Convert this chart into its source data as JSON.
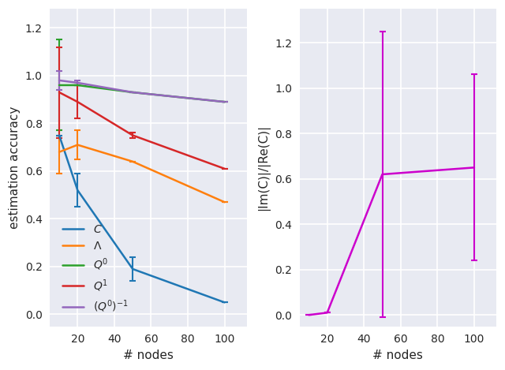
{
  "left": {
    "x": [
      10,
      20,
      50,
      100
    ],
    "C": {
      "y": [
        0.75,
        0.52,
        0.19,
        0.05
      ],
      "yerr": [
        0.0,
        0.07,
        0.05,
        0.0
      ],
      "color": "#1f77b4"
    },
    "Lambda": {
      "y": [
        0.68,
        0.71,
        0.64,
        0.47
      ],
      "yerr": [
        0.09,
        0.06,
        0.0,
        0.0
      ],
      "color": "#ff7f0e"
    },
    "Q0": {
      "y": [
        0.96,
        0.96,
        0.93,
        0.89
      ],
      "yerr": [
        0.19,
        0.0,
        0.0,
        0.0
      ],
      "color": "#2ca02c"
    },
    "Q1": {
      "y": [
        0.93,
        0.89,
        0.75,
        0.61
      ],
      "yerr": [
        0.19,
        0.07,
        0.01,
        0.0
      ],
      "color": "#d62728"
    },
    "Q0inv": {
      "y": [
        0.98,
        0.97,
        0.93,
        0.89
      ],
      "yerr": [
        0.04,
        0.01,
        0.0,
        0.0
      ],
      "color": "#9467bd"
    },
    "xlabel": "# nodes",
    "ylabel": "estimation accuracy",
    "ylim": [
      -0.05,
      1.28
    ],
    "xlim": [
      5,
      112
    ],
    "yticks": [
      0.0,
      0.2,
      0.4,
      0.6,
      0.8,
      1.0,
      1.2
    ],
    "xticks": [
      20,
      40,
      60,
      80,
      100
    ]
  },
  "right": {
    "x": [
      10,
      20,
      50,
      100
    ],
    "y": [
      0.0,
      0.01,
      0.62,
      0.65
    ],
    "yerr": [
      0.0,
      0.0,
      0.63,
      0.41
    ],
    "color": "#cc00cc",
    "xlabel": "# nodes",
    "ylabel": "|Im(C)|/|Re(C)|",
    "ylim": [
      -0.05,
      1.35
    ],
    "xlim": [
      5,
      112
    ],
    "yticks": [
      0.0,
      0.2,
      0.4,
      0.6,
      0.8,
      1.0,
      1.2
    ],
    "xticks": [
      20,
      40,
      60,
      80,
      100
    ]
  },
  "bg_color": "#e8eaf2",
  "grid_color": "#ffffff",
  "fig_bg": "#ffffff"
}
